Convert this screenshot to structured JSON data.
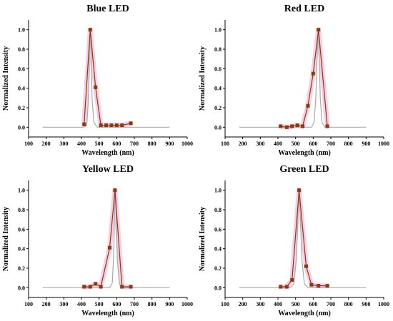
{
  "chart_data": [
    {
      "type": "line",
      "title": "Blue LED",
      "xlabel": "Wavelength (nm)",
      "ylabel": "Normalized Intensity",
      "xlim": [
        100,
        1000
      ],
      "ylim": [
        -0.1,
        1.1
      ],
      "xticks": [
        100,
        200,
        300,
        400,
        500,
        600,
        700,
        800,
        900,
        1000
      ],
      "yticks": [
        0.0,
        0.2,
        0.4,
        0.6,
        0.8,
        1.0
      ],
      "colors": {
        "measured": "#8B3A10",
        "spectrum": "#a9a9a9",
        "highlight": "#f7c6e2"
      },
      "series": [
        {
          "role": "measured",
          "x": [
            415,
            450,
            480,
            510,
            540,
            570,
            600,
            630,
            680
          ],
          "y": [
            0.03,
            1.0,
            0.41,
            0.02,
            0.02,
            0.02,
            0.02,
            0.02,
            0.04
          ]
        },
        {
          "role": "spectrum",
          "x": [
            180,
            410,
            430,
            440,
            445,
            450,
            455,
            460,
            470,
            490,
            900
          ],
          "y": [
            0,
            0,
            0.02,
            0.3,
            0.75,
            0.98,
            0.75,
            0.3,
            0.05,
            0,
            0
          ]
        }
      ]
    },
    {
      "type": "line",
      "title": "Red LED",
      "xlabel": "Wavelength (nm)",
      "ylabel": "Normalized Intensity",
      "xlim": [
        100,
        1000
      ],
      "ylim": [
        -0.1,
        1.1
      ],
      "xticks": [
        100,
        200,
        300,
        400,
        500,
        600,
        700,
        800,
        900,
        1000
      ],
      "yticks": [
        0.0,
        0.2,
        0.4,
        0.6,
        0.8,
        1.0
      ],
      "colors": {
        "measured": "#8B3A10",
        "spectrum": "#a9a9a9",
        "highlight": "#f7c6e2"
      },
      "series": [
        {
          "role": "measured",
          "x": [
            415,
            450,
            480,
            510,
            540,
            570,
            600,
            630,
            680
          ],
          "y": [
            0.01,
            0.0,
            0.01,
            0.02,
            0.01,
            0.22,
            0.55,
            1.0,
            0.01
          ]
        },
        {
          "role": "spectrum",
          "x": [
            180,
            590,
            605,
            615,
            622,
            628,
            634,
            640,
            650,
            665,
            900
          ],
          "y": [
            0,
            0,
            0.05,
            0.3,
            0.75,
            0.97,
            0.75,
            0.3,
            0.05,
            0,
            0
          ]
        }
      ]
    },
    {
      "type": "line",
      "title": "Yellow LED",
      "xlabel": "Wavelength (nm)",
      "ylabel": "Normalized Intensity",
      "xlim": [
        100,
        1000
      ],
      "ylim": [
        -0.1,
        1.1
      ],
      "xticks": [
        100,
        200,
        300,
        400,
        500,
        600,
        700,
        800,
        900,
        1000
      ],
      "yticks": [
        0.0,
        0.2,
        0.4,
        0.6,
        0.8,
        1.0
      ],
      "colors": {
        "measured": "#8B3A10",
        "spectrum": "#a9a9a9",
        "highlight": "#f7c6e2"
      },
      "series": [
        {
          "role": "measured",
          "x": [
            415,
            450,
            480,
            510,
            560,
            590,
            630,
            680
          ],
          "y": [
            0.01,
            0.01,
            0.04,
            0.01,
            0.41,
            1.0,
            0.01,
            0.01
          ]
        },
        {
          "role": "spectrum",
          "x": [
            180,
            560,
            575,
            583,
            588,
            592,
            597,
            603,
            615,
            630,
            900
          ],
          "y": [
            0,
            0,
            0.05,
            0.35,
            0.8,
            0.98,
            0.75,
            0.3,
            0.04,
            0,
            0
          ]
        }
      ]
    },
    {
      "type": "line",
      "title": "Green LED",
      "xlabel": "Wavelength (nm)",
      "ylabel": "Normalized Intensity",
      "xlim": [
        100,
        1000
      ],
      "ylim": [
        -0.1,
        1.1
      ],
      "xticks": [
        100,
        200,
        300,
        400,
        500,
        600,
        700,
        800,
        900,
        1000
      ],
      "yticks": [
        0.0,
        0.2,
        0.4,
        0.6,
        0.8,
        1.0
      ],
      "colors": {
        "measured": "#8B3A10",
        "spectrum": "#a9a9a9",
        "highlight": "#f7c6e2"
      },
      "series": [
        {
          "role": "measured",
          "x": [
            415,
            450,
            480,
            520,
            560,
            590,
            630,
            680
          ],
          "y": [
            0.01,
            0.01,
            0.08,
            1.0,
            0.22,
            0.03,
            0.02,
            0.02
          ]
        },
        {
          "role": "spectrum",
          "x": [
            180,
            470,
            490,
            505,
            513,
            520,
            527,
            535,
            550,
            570,
            900
          ],
          "y": [
            0,
            0,
            0.04,
            0.3,
            0.75,
            0.97,
            0.75,
            0.3,
            0.04,
            0,
            0
          ]
        }
      ]
    }
  ]
}
